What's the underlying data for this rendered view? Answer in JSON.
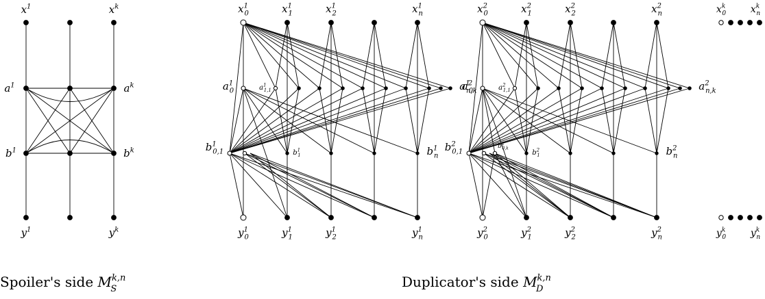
{
  "spoiler": {
    "caption": "Spoiler's side",
    "caption_math": {
      "base": "M",
      "sup": "k,n",
      "sub": "S"
    },
    "labels": {
      "x1": {
        "base": "x",
        "sup": "1"
      },
      "xk": {
        "base": "x",
        "sup": "k"
      },
      "a1": {
        "base": "a",
        "sup": "1"
      },
      "ak": {
        "base": "a",
        "sup": "k"
      },
      "b1": {
        "base": "b",
        "sup": "1"
      },
      "bk": {
        "base": "b",
        "sup": "k"
      },
      "y1": {
        "base": "y",
        "sup": "1"
      },
      "yk": {
        "base": "y",
        "sup": "k"
      }
    }
  },
  "duplicator": {
    "caption": "Duplicator's side",
    "caption_math": {
      "base": "M",
      "sup": "k,n",
      "sub": "D"
    },
    "copy1": {
      "x0": {
        "base": "x",
        "sup": "1",
        "sub": "0"
      },
      "x1": {
        "base": "x",
        "sup": "1",
        "sub": "1"
      },
      "x2": {
        "base": "x",
        "sup": "1",
        "sub": "2"
      },
      "xn": {
        "base": "x",
        "sup": "1",
        "sub": "n"
      },
      "a0": {
        "base": "a",
        "sup": "1",
        "sub": "0"
      },
      "a11": {
        "base": "a",
        "sup": "1",
        "sub": "1,1"
      },
      "ank": {
        "base": "a",
        "sup": "1",
        "sub": "n,k"
      },
      "b01": {
        "base": "b",
        "sup": "1",
        "sub": "0,1"
      },
      "b1": {
        "base": "b",
        "sup": "1",
        "sub": "1"
      },
      "bn": {
        "base": "b",
        "sup": "1",
        "sub": "n"
      },
      "y0": {
        "base": "y",
        "sup": "1",
        "sub": "0"
      },
      "y1": {
        "base": "y",
        "sup": "1",
        "sub": "1"
      },
      "y2": {
        "base": "y",
        "sup": "1",
        "sub": "2"
      },
      "yn": {
        "base": "y",
        "sup": "1",
        "sub": "n"
      }
    },
    "copy2": {
      "x0": {
        "base": "x",
        "sup": "2",
        "sub": "0"
      },
      "x1": {
        "base": "x",
        "sup": "2",
        "sub": "1"
      },
      "x2": {
        "base": "x",
        "sup": "2",
        "sub": "2"
      },
      "xn": {
        "base": "x",
        "sup": "2",
        "sub": "n"
      },
      "a0": {
        "base": "a",
        "sup": "2",
        "sub": "0"
      },
      "a11": {
        "base": "a",
        "sup": "2",
        "sub": "1,1"
      },
      "ank": {
        "base": "a",
        "sup": "2",
        "sub": "n,k"
      },
      "b01": {
        "base": "b",
        "sup": "2",
        "sub": "0,1"
      },
      "b0k": {
        "base": "b",
        "sup": "2",
        "sub": "0,k"
      },
      "b1": {
        "base": "b",
        "sup": "2",
        "sub": "1"
      },
      "bn": {
        "base": "b",
        "sup": "2",
        "sub": "n"
      },
      "y0": {
        "base": "y",
        "sup": "2",
        "sub": "0"
      },
      "y1": {
        "base": "y",
        "sup": "2",
        "sub": "1"
      },
      "y2": {
        "base": "y",
        "sup": "2",
        "sub": "2"
      },
      "yn": {
        "base": "y",
        "sup": "2",
        "sub": "n"
      }
    },
    "copyk": {
      "x0": {
        "base": "x",
        "sup": "k",
        "sub": "0"
      },
      "xn": {
        "base": "x",
        "sup": "k",
        "sub": "n"
      },
      "y0": {
        "base": "y",
        "sup": "k",
        "sub": "0"
      },
      "yn": {
        "base": "y",
        "sup": "k",
        "sub": "n"
      }
    }
  }
}
